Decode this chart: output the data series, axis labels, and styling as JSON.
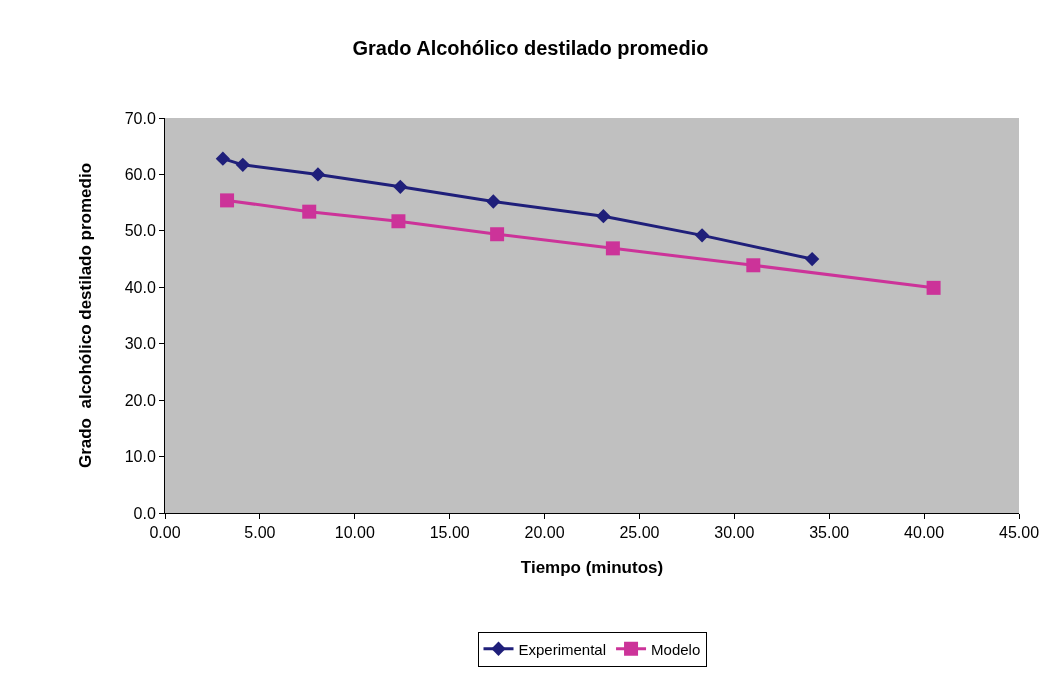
{
  "chart_data": {
    "type": "line",
    "title": "Grado Alcohólico destilado promedio",
    "xlabel": "Tiempo (minutos)",
    "ylabel": "Grado  alcohólico destilado promedio",
    "xlim": [
      0,
      45
    ],
    "xticks": [
      {
        "value": 0,
        "label": "0.00"
      },
      {
        "value": 5,
        "label": "5.00"
      },
      {
        "value": 10,
        "label": "10.00"
      },
      {
        "value": 15,
        "label": "15.00"
      },
      {
        "value": 20,
        "label": "20.00"
      },
      {
        "value": 25,
        "label": "25.00"
      },
      {
        "value": 30,
        "label": "30.00"
      },
      {
        "value": 35,
        "label": "35.00"
      },
      {
        "value": 40,
        "label": "40.00"
      },
      {
        "value": 45,
        "label": "45.00"
      }
    ],
    "ylim": [
      0,
      70
    ],
    "yticks": [
      {
        "value": 0,
        "label": "0.0"
      },
      {
        "value": 10,
        "label": "10.0"
      },
      {
        "value": 20,
        "label": "20.0"
      },
      {
        "value": 30,
        "label": "30.0"
      },
      {
        "value": 40,
        "label": "40.0"
      },
      {
        "value": 50,
        "label": "50.0"
      },
      {
        "value": 60,
        "label": "60.0"
      },
      {
        "value": 70,
        "label": "70.0"
      }
    ],
    "grid": false,
    "legend": "bottom",
    "series": [
      {
        "name": "Experimental",
        "color": "#1f1f7a",
        "marker": "diamond",
        "x": [
          3.05,
          4.1,
          8.06,
          12.4,
          17.3,
          23.1,
          28.3,
          34.1
        ],
        "values": [
          62.8,
          61.7,
          60.0,
          57.8,
          55.2,
          52.6,
          49.2,
          45.0
        ]
      },
      {
        "name": "Modelo",
        "color": "#cc3399",
        "marker": "square",
        "x": [
          3.27,
          7.6,
          12.3,
          17.5,
          23.6,
          31.0,
          40.5
        ],
        "values": [
          55.4,
          53.4,
          51.7,
          49.4,
          46.9,
          43.9,
          39.9
        ]
      }
    ]
  }
}
